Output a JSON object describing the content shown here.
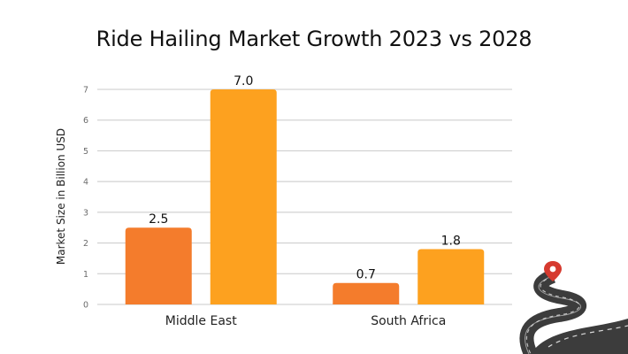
{
  "chart_data": {
    "type": "bar",
    "title": "Ride Hailing Market Growth 2023 vs 2028",
    "ylabel": "Market Size in Billion  USD",
    "xlabel": "",
    "categories": [
      "Middle East",
      "South Africa"
    ],
    "series": [
      {
        "values": [
          2.5,
          0.7
        ],
        "color": "#f47c2c"
      },
      {
        "values": [
          7.0,
          1.8
        ],
        "color": "#fda11f"
      }
    ],
    "data_labels": [
      [
        "2.5",
        "0.7"
      ],
      [
        "7.0",
        "1.8"
      ]
    ],
    "ylim": [
      0,
      7
    ],
    "yticks": [
      0,
      1,
      2,
      3,
      4,
      5,
      6,
      7
    ],
    "grid": true,
    "legend": "none",
    "gridline_color": "#c8c8c8"
  },
  "decoration": {
    "road_icon": "winding-road-icon",
    "pin_icon": "map-pin-icon",
    "pin_color": "#d63a2f",
    "road_color": "#3c3c3c"
  }
}
